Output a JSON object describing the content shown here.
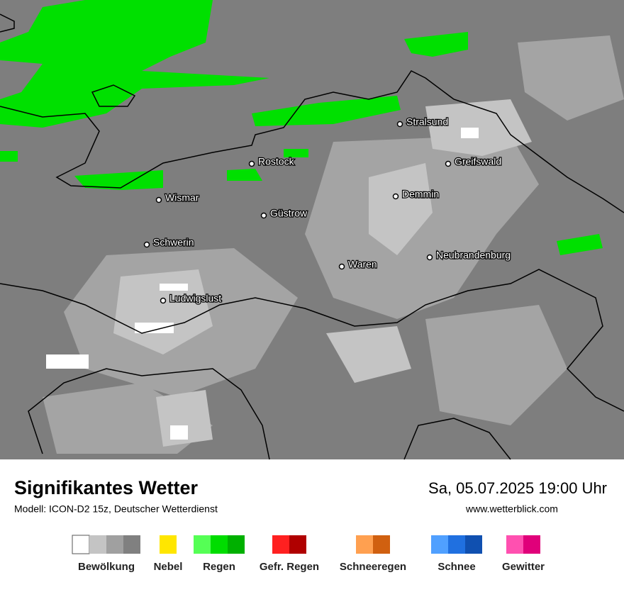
{
  "header": {
    "title": "Signifikantes Wetter",
    "model": "Modell: ICON-D2 15z, Deutscher Wetterdienst",
    "datetime": "Sa, 05.07.2025 19:00 Uhr",
    "website": "www.wetterblick.com"
  },
  "cities": [
    "Stralsund",
    "Rostock",
    "Greifswald",
    "Wismar",
    "Demmin",
    "Güstrow",
    "Schwerin",
    "Waren",
    "Neubrandenburg",
    "Ludwigslust"
  ],
  "legend": [
    {
      "label": "Bewölkung",
      "colors": [
        "#ffffff",
        "#c4c4c4",
        "#a0a0a0",
        "#808080"
      ]
    },
    {
      "label": "Nebel",
      "colors": [
        "#ffe600"
      ]
    },
    {
      "label": "Regen",
      "colors": [
        "#55ff55",
        "#00dd00",
        "#00b000"
      ]
    },
    {
      "label": "Gefr. Regen",
      "colors": [
        "#ff2020",
        "#b00000"
      ]
    },
    {
      "label": "Schneeregen",
      "colors": [
        "#ffa050",
        "#d06010"
      ]
    },
    {
      "label": "Schnee",
      "colors": [
        "#50a0ff",
        "#2070e0",
        "#1050b0"
      ]
    },
    {
      "label": "Gewitter",
      "colors": [
        "#ff50b0",
        "#e0007a"
      ]
    }
  ]
}
